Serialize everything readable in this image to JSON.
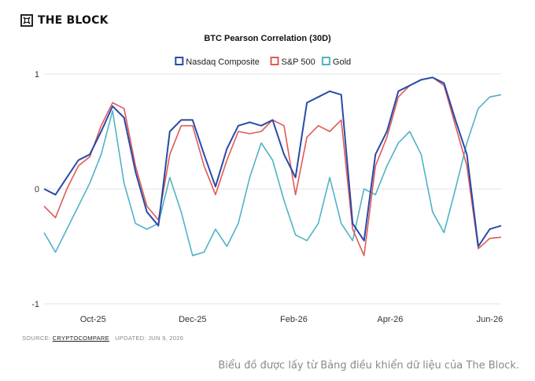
{
  "brand": {
    "name": "THE BLOCK",
    "logo_icon": "the-block-logo-icon"
  },
  "footer": {
    "source_label": "SOURCE:",
    "source_name": "CRYPTOCOMPARE",
    "updated_label": "UPDATED:",
    "updated_date": "JUN 9, 2026"
  },
  "caption": "Biểu đồ được lấy từ Bảng điều khiển dữ liệu của The Block.",
  "chart_data": {
    "type": "line",
    "title": "BTC Pearson Correlation (30D)",
    "legend_position": "top-center",
    "grid": "horizontal",
    "ylim": [
      -1,
      1
    ],
    "yticks": [
      1,
      0,
      -1
    ],
    "xticks": [
      "Oct-25",
      "Dec-25",
      "Feb-26",
      "Apr-26",
      "Jun-26"
    ],
    "xtick_positions": [
      "2025-10-01",
      "2025-12-01",
      "2026-02-01",
      "2026-04-01",
      "2026-06-01"
    ],
    "x": [
      "2025-09-01",
      "2025-09-08",
      "2025-09-15",
      "2025-09-22",
      "2025-09-29",
      "2025-10-06",
      "2025-10-13",
      "2025-10-20",
      "2025-10-27",
      "2025-11-03",
      "2025-11-10",
      "2025-11-17",
      "2025-11-24",
      "2025-12-01",
      "2025-12-08",
      "2025-12-15",
      "2025-12-22",
      "2025-12-29",
      "2026-01-05",
      "2026-01-12",
      "2026-01-19",
      "2026-01-26",
      "2026-02-02",
      "2026-02-09",
      "2026-02-16",
      "2026-02-23",
      "2026-03-02",
      "2026-03-09",
      "2026-03-16",
      "2026-03-23",
      "2026-03-30",
      "2026-04-06",
      "2026-04-13",
      "2026-04-20",
      "2026-04-27",
      "2026-05-04",
      "2026-05-11",
      "2026-05-18",
      "2026-05-25",
      "2026-06-01",
      "2026-06-08"
    ],
    "colors": {
      "Nasdaq Composite": "#2a4aa8",
      "S&P 500": "#e05a56",
      "Gold": "#4fb3c4"
    },
    "series": [
      {
        "name": "Nasdaq Composite",
        "values": [
          0.0,
          -0.05,
          0.1,
          0.25,
          0.3,
          0.5,
          0.72,
          0.62,
          0.15,
          -0.2,
          -0.32,
          0.5,
          0.6,
          0.6,
          0.3,
          0.02,
          0.35,
          0.55,
          0.58,
          0.55,
          0.6,
          0.3,
          0.1,
          0.75,
          0.8,
          0.85,
          0.82,
          -0.3,
          -0.45,
          0.3,
          0.5,
          0.85,
          0.9,
          0.95,
          0.97,
          0.92,
          0.6,
          0.3,
          -0.5,
          -0.35,
          -0.32
        ]
      },
      {
        "name": "S&P 500",
        "values": [
          -0.15,
          -0.25,
          0.0,
          0.2,
          0.28,
          0.55,
          0.75,
          0.7,
          0.2,
          -0.15,
          -0.27,
          0.3,
          0.55,
          0.55,
          0.2,
          -0.05,
          0.25,
          0.5,
          0.48,
          0.5,
          0.6,
          0.55,
          -0.05,
          0.45,
          0.55,
          0.5,
          0.6,
          -0.35,
          -0.58,
          0.2,
          0.45,
          0.8,
          0.9,
          0.95,
          0.97,
          0.9,
          0.55,
          0.2,
          -0.52,
          -0.43,
          -0.42
        ]
      },
      {
        "name": "Gold",
        "values": [
          -0.38,
          -0.55,
          -0.35,
          -0.15,
          0.05,
          0.3,
          0.68,
          0.05,
          -0.3,
          -0.35,
          -0.3,
          0.1,
          -0.2,
          -0.58,
          -0.55,
          -0.35,
          -0.5,
          -0.3,
          0.1,
          0.4,
          0.25,
          -0.1,
          -0.4,
          -0.45,
          -0.3,
          0.1,
          -0.3,
          -0.45,
          0.0,
          -0.05,
          0.2,
          0.4,
          0.5,
          0.3,
          -0.2,
          -0.38,
          0.0,
          0.4,
          0.7,
          0.8,
          0.82
        ]
      }
    ]
  }
}
